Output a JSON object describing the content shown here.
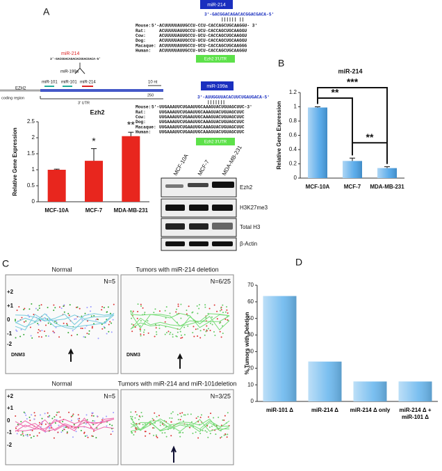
{
  "panel_labels": [
    "A",
    "B",
    "C",
    "D"
  ],
  "schematic": {
    "mir214": "miR-214",
    "mir214_seq": "3'-GACGGACAGACACGGACGACA-5'",
    "mir199a": "miR-199a",
    "site_labels": [
      "miR-101",
      "miR-101",
      "miR-214"
    ],
    "scale": "10 nt",
    "gene": "EZH2",
    "coding": "coding region",
    "utr": "3' UTR",
    "length": "250"
  },
  "alignments": [
    {
      "mirna": "miR-214",
      "mirna_seq": "3'-GACGGACAGACACGGACGACA-5'",
      "pairing": "|||||| ||",
      "rows": [
        {
          "species": "Mouse:",
          "seq": "5'-ACUUUUUAUUGCCU-CCU-CACCAGCUGCAAGGU- 3'"
        },
        {
          "species": "Rat:",
          "seq": "ACUUUUUAUUGCCU-UCU-CACCAGCUGCAAGGU"
        },
        {
          "species": "Cow:",
          "seq": "ACUUUUUAUUGCCU-UCU-CACCAGCUGCAAGGU"
        },
        {
          "species": "Dog:",
          "seq": "ACUUUUUAUUGCCU-UCU-CACCAGCUGCAAGGU"
        },
        {
          "species": "Macaque:",
          "seq": "ACUUUUUAUUGCCU-UCU-CACCAGCUGCAAGGG"
        },
        {
          "species": "Human:",
          "seq": "ACUUUUUAUUGCCU-UCU-CACCAGCUGCAAGGU"
        }
      ],
      "utr": "Ezh2 3'UTR"
    },
    {
      "mirna": "miR-199a",
      "mirna_seq": "3'-AUUGGUUACACUUCUGAUGACA-5'",
      "pairing": "|||||||",
      "rows": [
        {
          "species": "Mouse:",
          "seq": "5'-UUGAAAUUCUGAAUUGCAAAGUACUGUAGCUUC-3'"
        },
        {
          "species": "Rat:",
          "seq": "UUGAAAUUCUGAAUUGCAAAGUACUGUAGCUUC"
        },
        {
          "species": "Cow:",
          "seq": "UUGAAAUUCUGAAUUGCAAAGUACUGUAGCUUC"
        },
        {
          "species": "Dog:",
          "seq": "UUGAAAUUCUGAAUUGCAAAGUACUGUAGCUUC"
        },
        {
          "species": "Macaque:",
          "seq": "UUGAAAUUCUGAAUUGCAAAGUACUGUAGCUUC"
        },
        {
          "species": "Human:",
          "seq": "UUGAAAUUCUGAAUUGCAAAGUACUGUAGCUUC"
        }
      ],
      "utr": "Ezh2 3'UTR"
    }
  ],
  "western": {
    "cell_lines": [
      "MCF-10A",
      "MCF-7",
      "MDA-MB-231"
    ],
    "bands": [
      "Ezh2",
      "H3K27me3",
      "Total H3",
      "β-Actin"
    ]
  },
  "copy_number": {
    "panels": [
      {
        "title": "Normal",
        "n": "N=5",
        "gene": "DNM3"
      },
      {
        "title": "Tumors with miR-214 deletion",
        "n": "N=6/25",
        "gene": "DNM3"
      },
      {
        "title": "Normal",
        "n": "N=5"
      },
      {
        "title": "Tumors with miR-214 and miR-101deletion",
        "n": "N=3/25"
      }
    ],
    "axis_labels": [
      "+2",
      "+1",
      "0",
      "-1",
      "-2"
    ]
  },
  "chart_data": [
    {
      "type": "bar",
      "title": "Ezh2",
      "y_label": "Relative Gene Expression",
      "categories": [
        "MCF-10A",
        "MCF-7",
        "MDA-MB-231"
      ],
      "values": [
        1.0,
        1.28,
        2.05
      ],
      "errors": [
        0.02,
        0.38,
        0.12
      ],
      "significance": [
        null,
        "*",
        "**"
      ],
      "color": "#e8261e",
      "gradient": false,
      "ylim": [
        0,
        2.5
      ],
      "yticks": [
        0,
        0.5,
        1,
        1.5,
        2,
        2.5
      ]
    },
    {
      "type": "bar",
      "title": "miR-214",
      "y_label": "Relative Gene Expression",
      "categories": [
        "MCF-10A",
        "MCF-7",
        "MDA-MB-231"
      ],
      "values": [
        0.99,
        0.24,
        0.14
      ],
      "errors": [
        0.01,
        0.04,
        0.02
      ],
      "comparisons": [
        {
          "from": "MCF-10A",
          "to": "MDA-MB-231",
          "label": "***"
        },
        {
          "from": "MCF-10A",
          "to": "MCF-7",
          "label": "**"
        },
        {
          "from": "MCF-7",
          "to": "MDA-MB-231",
          "label": "**"
        }
      ],
      "color": "#4aa3e8",
      "gradient": true,
      "ylim": [
        0,
        1.2
      ],
      "yticks": [
        0,
        0.2,
        0.4,
        0.6,
        0.8,
        1,
        1.2
      ]
    },
    {
      "type": "bar",
      "y_label": "% Tumors with Deletion",
      "categories": [
        "miR-101 Δ",
        "miR-214 Δ",
        "miR-214 Δ only",
        "miR-214 Δ + miR-101 Δ"
      ],
      "values": [
        63.5,
        24,
        12,
        12
      ],
      "color": "#6cb8ee",
      "gradient": true,
      "ylim": [
        0,
        70
      ],
      "yticks": [
        0,
        10,
        20,
        30,
        40,
        50,
        60,
        70
      ]
    }
  ]
}
